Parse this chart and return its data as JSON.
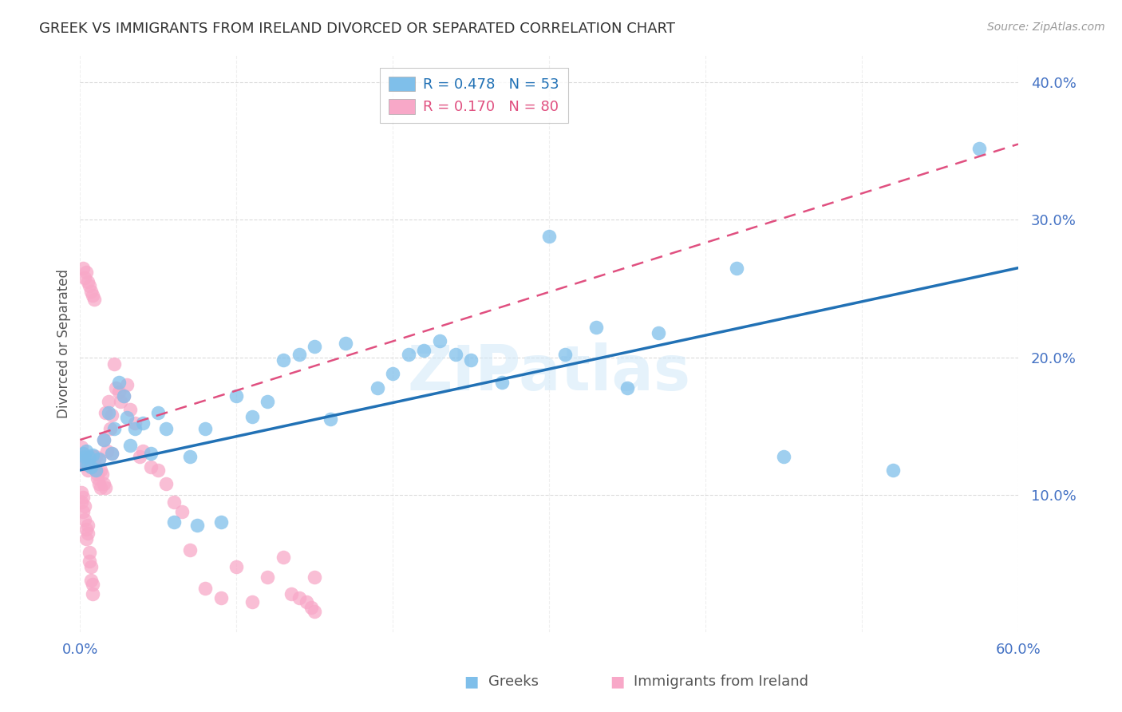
{
  "title": "GREEK VS IMMIGRANTS FROM IRELAND DIVORCED OR SEPARATED CORRELATION CHART",
  "source": "Source: ZipAtlas.com",
  "ylabel": "Divorced or Separated",
  "watermark": "ZIPatlas",
  "xlim": [
    0.0,
    0.6
  ],
  "ylim": [
    0.0,
    0.42
  ],
  "series_blue": {
    "color": "#7fbfea",
    "line_color": "#2171b5",
    "points_x": [
      0.001,
      0.002,
      0.003,
      0.004,
      0.005,
      0.006,
      0.007,
      0.008,
      0.01,
      0.012,
      0.015,
      0.018,
      0.02,
      0.022,
      0.025,
      0.028,
      0.03,
      0.032,
      0.035,
      0.04,
      0.045,
      0.05,
      0.055,
      0.06,
      0.07,
      0.075,
      0.08,
      0.09,
      0.1,
      0.11,
      0.12,
      0.13,
      0.14,
      0.15,
      0.16,
      0.17,
      0.19,
      0.2,
      0.21,
      0.22,
      0.23,
      0.24,
      0.25,
      0.27,
      0.3,
      0.31,
      0.33,
      0.35,
      0.37,
      0.42,
      0.45,
      0.52,
      0.575
    ],
    "points_y": [
      0.125,
      0.13,
      0.128,
      0.132,
      0.122,
      0.127,
      0.12,
      0.129,
      0.118,
      0.126,
      0.14,
      0.16,
      0.13,
      0.148,
      0.182,
      0.172,
      0.156,
      0.136,
      0.148,
      0.152,
      0.13,
      0.16,
      0.148,
      0.08,
      0.128,
      0.078,
      0.148,
      0.08,
      0.172,
      0.157,
      0.168,
      0.198,
      0.202,
      0.208,
      0.155,
      0.21,
      0.178,
      0.188,
      0.202,
      0.205,
      0.212,
      0.202,
      0.198,
      0.182,
      0.288,
      0.202,
      0.222,
      0.178,
      0.218,
      0.265,
      0.128,
      0.118,
      0.352
    ]
  },
  "series_pink": {
    "color": "#f8a8c8",
    "line_color": "#e05080",
    "points_x": [
      0.001,
      0.001,
      0.002,
      0.002,
      0.003,
      0.003,
      0.004,
      0.004,
      0.005,
      0.005,
      0.006,
      0.006,
      0.007,
      0.007,
      0.008,
      0.008,
      0.009,
      0.009,
      0.01,
      0.01,
      0.011,
      0.011,
      0.012,
      0.012,
      0.013,
      0.013,
      0.014,
      0.015,
      0.015,
      0.016,
      0.016,
      0.017,
      0.018,
      0.019,
      0.02,
      0.02,
      0.022,
      0.023,
      0.025,
      0.026,
      0.028,
      0.03,
      0.032,
      0.035,
      0.038,
      0.04,
      0.045,
      0.05,
      0.055,
      0.06,
      0.065,
      0.07,
      0.08,
      0.09,
      0.1,
      0.11,
      0.12,
      0.13,
      0.135,
      0.14,
      0.145,
      0.148,
      0.15,
      0.15,
      0.001,
      0.001,
      0.002,
      0.002,
      0.003,
      0.003,
      0.004,
      0.004,
      0.005,
      0.005,
      0.006,
      0.006,
      0.007,
      0.007,
      0.008,
      0.008
    ],
    "points_y": [
      0.125,
      0.135,
      0.128,
      0.265,
      0.122,
      0.258,
      0.128,
      0.262,
      0.118,
      0.255,
      0.127,
      0.252,
      0.12,
      0.248,
      0.128,
      0.245,
      0.122,
      0.242,
      0.118,
      0.128,
      0.115,
      0.112,
      0.126,
      0.108,
      0.118,
      0.105,
      0.115,
      0.14,
      0.108,
      0.16,
      0.105,
      0.132,
      0.168,
      0.148,
      0.13,
      0.158,
      0.195,
      0.178,
      0.175,
      0.168,
      0.172,
      0.18,
      0.162,
      0.152,
      0.128,
      0.132,
      0.12,
      0.118,
      0.108,
      0.095,
      0.088,
      0.06,
      0.032,
      0.025,
      0.048,
      0.022,
      0.04,
      0.055,
      0.028,
      0.025,
      0.022,
      0.018,
      0.04,
      0.015,
      0.102,
      0.095,
      0.098,
      0.088,
      0.092,
      0.082,
      0.075,
      0.068,
      0.072,
      0.078,
      0.058,
      0.052,
      0.048,
      0.038,
      0.035,
      0.028
    ]
  },
  "blue_trend": {
    "x_start": 0.0,
    "x_end": 0.6,
    "y_start": 0.118,
    "y_end": 0.265
  },
  "pink_trend": {
    "x_start": 0.0,
    "x_end": 0.6,
    "y_start": 0.14,
    "y_end": 0.355
  },
  "background_color": "#ffffff",
  "grid_color": "#cccccc",
  "title_color": "#333333",
  "tick_color": "#4472c4"
}
